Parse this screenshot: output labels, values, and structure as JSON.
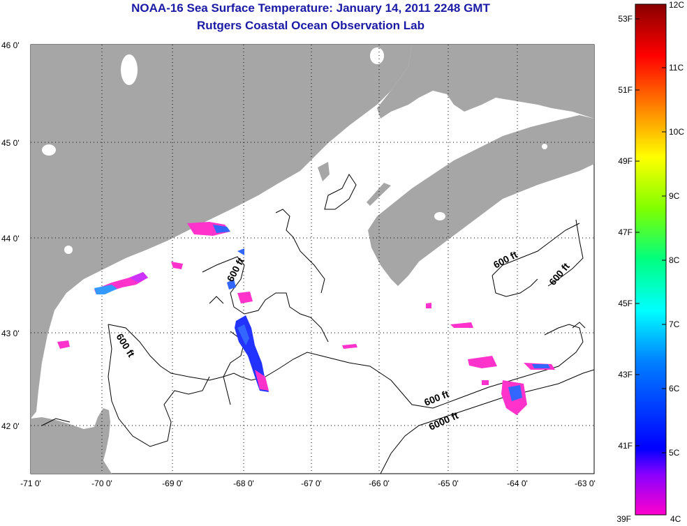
{
  "title": {
    "line1": "NOAA-16 Sea Surface Temperature:  January 14, 2011 2248 GMT",
    "line2": "Rutgers Coastal Ocean Observation Lab"
  },
  "map": {
    "lon_labels": [
      "-71 0'",
      "-70 0'",
      "-69 0'",
      "-68 0'",
      "-67 0'",
      "-66 0'",
      "-65 0'",
      "-64 0'",
      "-63 0'"
    ],
    "lat_labels": [
      "46 0'",
      "45 0'",
      "44 0'",
      "43 0'",
      "42 0'"
    ],
    "contour_labels": [
      "600 ft",
      "600 ft",
      "600 ft",
      "600 ft",
      "600 ft",
      "6000 ft"
    ],
    "colors": {
      "land": "#a6a6a6",
      "ocean": "#ffffff",
      "grid": "#000000",
      "contour": "#000000"
    }
  },
  "colorbar": {
    "fahrenheit_labels": [
      "53F",
      "51F",
      "49F",
      "47F",
      "45F",
      "43F",
      "41F",
      "39F"
    ],
    "celsius_labels": [
      "12C",
      "11C",
      "10C",
      "9C",
      "8C",
      "7C",
      "6C",
      "5C",
      "4C"
    ],
    "gradient": [
      "#ff00cc",
      "#8800ff",
      "#0000ff",
      "#0080ff",
      "#00ffff",
      "#00ff80",
      "#80ff00",
      "#ffff00",
      "#ff8000",
      "#ff0000",
      "#880000"
    ]
  }
}
